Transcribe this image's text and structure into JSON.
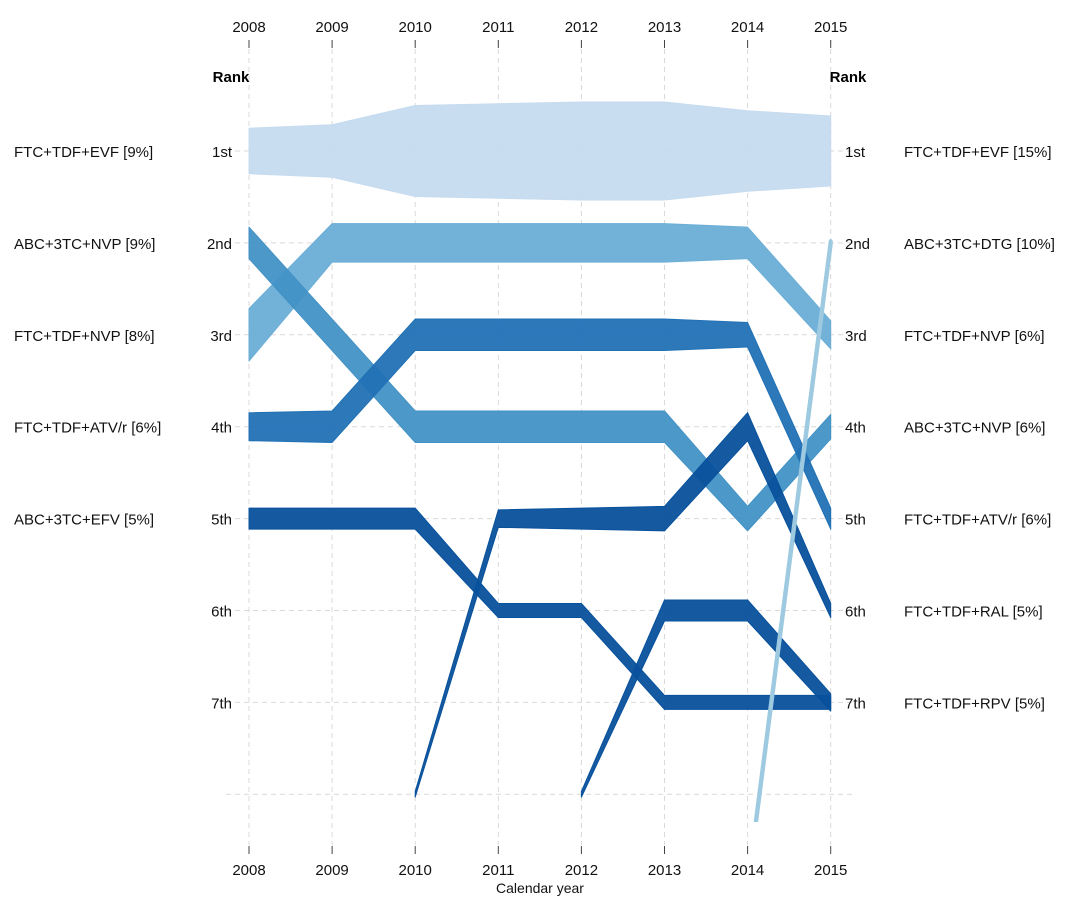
{
  "chart_data": {
    "type": "bump",
    "xlabel": "Calendar year",
    "rank_header_left": "Rank",
    "rank_header_right": "Rank",
    "years": [
      2008,
      2009,
      2010,
      2011,
      2012,
      2013,
      2014,
      2015
    ],
    "rank_labels": [
      "1st",
      "2nd",
      "3rd",
      "4th",
      "5th",
      "6th",
      "7th"
    ],
    "left_labels": [
      "FTC+TDF+EVF [9%]",
      "ABC+3TC+NVP [9%]",
      "FTC+TDF+NVP [8%]",
      "FTC+TDF+ATV/r [6%]",
      "ABC+3TC+EFV [5%]"
    ],
    "right_labels": [
      "FTC+TDF+EVF [15%]",
      "ABC+3TC+DTG [10%]",
      "FTC+TDF+NVP [6%]",
      "ABC+3TC+NVP [6%]",
      "FTC+TDF+ATV/r [6%]",
      "FTC+TDF+RAL [5%]",
      "FTC+TDF+RPV [5%]"
    ],
    "colors": {
      "lightest": "#c6dbef",
      "light": "#6baed6",
      "mid": "#4292c6",
      "dark": "#2171b5",
      "darkest": "#08519c",
      "pale": "#9ecae1"
    },
    "series": [
      {
        "color": "lightest",
        "ranks": [
          1,
          1,
          1,
          1,
          1,
          1,
          1,
          1
        ],
        "widths": [
          0.65,
          0.75,
          1.3,
          1.35,
          1.4,
          1.4,
          1.15,
          1.0
        ]
      },
      {
        "color": "light",
        "ranks": [
          3,
          2,
          2,
          2,
          2,
          2,
          2,
          3
        ],
        "widths": [
          0.75,
          0.55,
          0.55,
          0.55,
          0.55,
          0.55,
          0.45,
          0.4
        ]
      },
      {
        "color": "mid",
        "ranks": [
          2,
          3,
          4,
          4,
          4,
          4,
          5,
          4
        ],
        "widths": [
          0.45,
          0.45,
          0.45,
          0.45,
          0.45,
          0.45,
          0.35,
          0.35
        ]
      },
      {
        "color": "dark",
        "ranks": [
          4,
          4,
          3,
          3,
          3,
          3,
          3,
          5
        ],
        "widths": [
          0.4,
          0.45,
          0.45,
          0.45,
          0.45,
          0.45,
          0.35,
          0.3
        ]
      },
      {
        "color": "darkest",
        "ranks": [
          5,
          5,
          5,
          6,
          6,
          7,
          7,
          7
        ],
        "widths": [
          0.3,
          0.3,
          0.3,
          0.2,
          0.2,
          0.2,
          0.2,
          0.2
        ]
      },
      {
        "color": "darkest",
        "ranks": [
          null,
          null,
          8,
          5,
          5,
          5,
          4,
          6
        ],
        "widths": [
          0,
          0,
          0.08,
          0.25,
          0.3,
          0.35,
          0.4,
          0.2
        ]
      },
      {
        "color": "darkest",
        "ranks": [
          null,
          null,
          null,
          null,
          8,
          6,
          6,
          7
        ],
        "widths": [
          0,
          0,
          0,
          0,
          0.08,
          0.3,
          0.3,
          0.25
        ]
      },
      {
        "color": "pale",
        "ranks": [
          null,
          null,
          null,
          null,
          null,
          null,
          9,
          2
        ],
        "widths": [
          0,
          0,
          0,
          0,
          0,
          0,
          0.05,
          0.05
        ]
      }
    ]
  }
}
